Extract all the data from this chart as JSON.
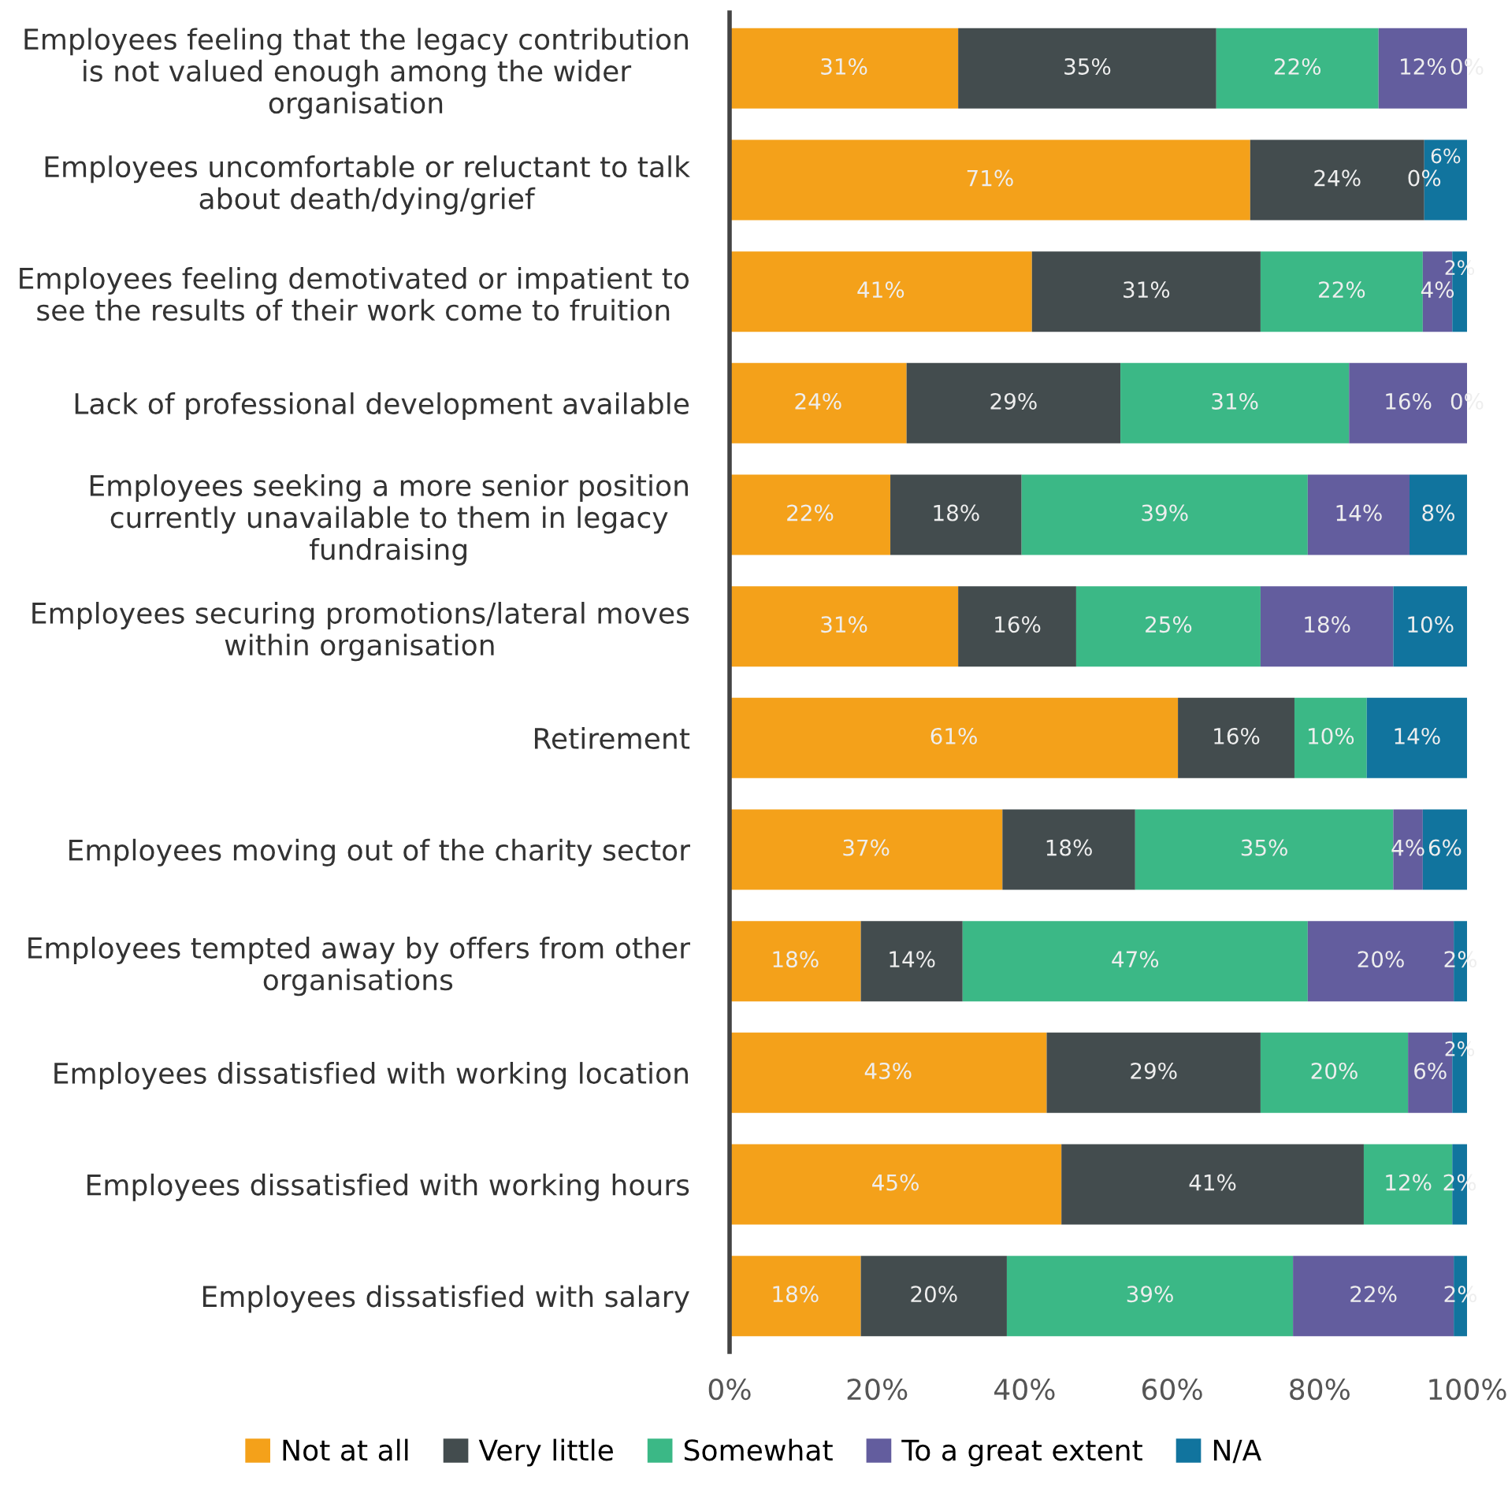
{
  "chart_data": {
    "type": "bar",
    "orientation": "horizontal",
    "stacked": true,
    "legend": "bottom",
    "grid": false,
    "categories": [
      "Employees feeling that the legacy contribution\nis not valued enough among the wider\norganisation",
      "Employees uncomfortable or reluctant to talk\nabout death/dying/grief",
      "Employees feeling demotivated or impatient to\nsee the results of their work come to fruition",
      "Lack of professional development available",
      "Employees seeking a more senior position\ncurrently unavailable to them in legacy\nfundraising",
      "Employees securing promotions/lateral moves\nwithin organisation",
      "Retirement",
      "Employees moving out of the charity sector",
      "Employees tempted away by offers from other\norganisations",
      "Employees dissatisfied with working location",
      "Employees dissatisfied with working hours",
      "Employees dissatisfied with salary"
    ],
    "xlim": [
      0,
      100
    ],
    "xticks": [
      {
        "value": 0,
        "label": "0%"
      },
      {
        "value": 20,
        "label": "20%"
      },
      {
        "value": 40,
        "label": "40%"
      },
      {
        "value": 60,
        "label": "60%"
      },
      {
        "value": 80,
        "label": "80%"
      },
      {
        "value": 100,
        "label": "100%"
      }
    ],
    "series": [
      {
        "name": "Not at all",
        "color": "#f4a11a",
        "values": [
          31,
          70.6,
          41,
          24,
          21.8,
          31,
          60.8,
          37,
          17.8,
          43,
          45,
          17.8
        ],
        "value_labels": [
          "31%",
          "71%",
          "41%",
          "24%",
          "22%",
          "31%",
          "61%",
          "37%",
          "18%",
          "43%",
          "45%",
          "18%"
        ]
      },
      {
        "name": "Very little",
        "color": "#434c4e",
        "values": [
          35,
          23.6,
          31,
          29,
          17.8,
          16,
          15.8,
          18,
          13.8,
          29,
          41,
          19.8
        ],
        "value_labels": [
          "35%",
          "24%",
          "31%",
          "29%",
          "18%",
          "16%",
          "16%",
          "18%",
          "14%",
          "29%",
          "41%",
          "20%"
        ]
      },
      {
        "name": "Somewhat",
        "color": "#3bb886",
        "values": [
          22,
          0,
          22,
          31,
          38.8,
          25,
          9.8,
          35,
          46.8,
          20,
          12,
          38.8
        ],
        "value_labels": [
          "22%",
          "0%",
          "22%",
          "31%",
          "39%",
          "25%",
          "10%",
          "35%",
          "47%",
          "20%",
          "12%",
          "39%"
        ]
      },
      {
        "name": "To a great extent",
        "color": "#635d9e",
        "values": [
          12,
          0,
          4,
          16,
          13.8,
          18,
          0,
          4,
          19.8,
          6,
          0,
          21.8
        ],
        "value_labels": [
          "12%",
          null,
          "4%",
          "16%",
          "14%",
          "18%",
          null,
          "4%",
          "20%",
          "6%",
          null,
          "22%"
        ]
      },
      {
        "name": "N/A",
        "color": "#11749e",
        "values": [
          0,
          5.8,
          2,
          0,
          7.8,
          10,
          13.6,
          6,
          1.8,
          2,
          2,
          1.8
        ],
        "value_labels": [
          "0%",
          "6%",
          "2%",
          "0%",
          "8%",
          "10%",
          "14%",
          "6%",
          "2%",
          "2%",
          "2%",
          "2%"
        ]
      }
    ]
  }
}
